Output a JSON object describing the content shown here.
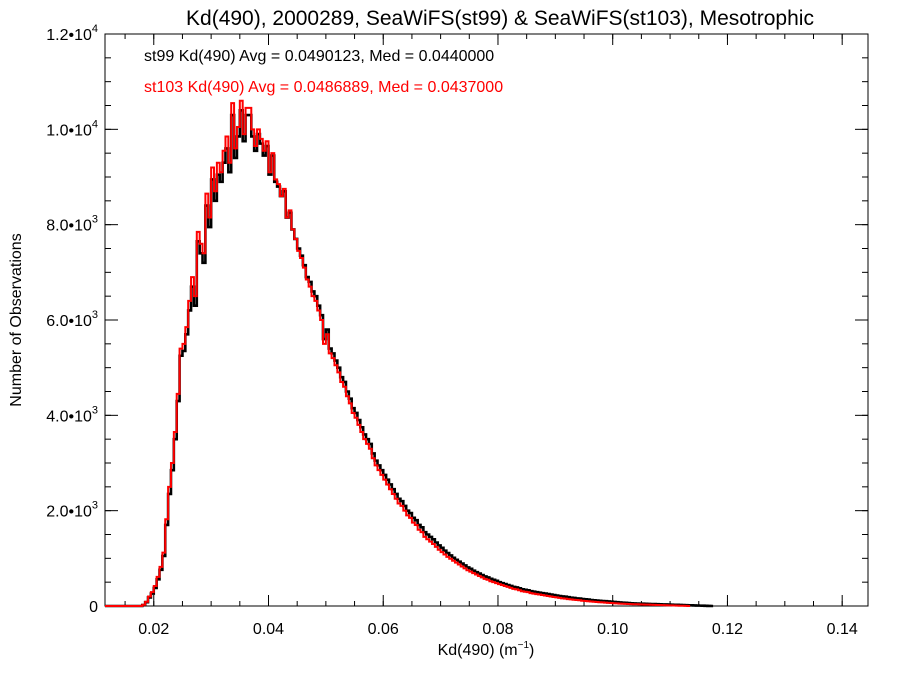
{
  "chart_data": {
    "type": "line",
    "title": "Kd(490), 2000289, SeaWiFS(st99) & SeaWiFS(st103), Mesotrophic",
    "xlabel_main": "Kd(490) (m",
    "xlabel_sup": "−1",
    "xlabel_close": ")",
    "ylabel": "Number of Observations",
    "xlim": [
      0.0115,
      0.1445
    ],
    "ylim": [
      0,
      12000
    ],
    "x_ticks": [
      {
        "value": 0.02,
        "label": "0.02"
      },
      {
        "value": 0.04,
        "label": "0.04"
      },
      {
        "value": 0.06,
        "label": "0.06"
      },
      {
        "value": 0.08,
        "label": "0.08"
      },
      {
        "value": 0.1,
        "label": "0.10"
      },
      {
        "value": 0.12,
        "label": "0.12"
      },
      {
        "value": 0.14,
        "label": "0.14"
      }
    ],
    "y_ticks": [
      {
        "value": 0,
        "mant": "0",
        "exp": ""
      },
      {
        "value": 2000,
        "mant": "2.0•10",
        "exp": "3"
      },
      {
        "value": 4000,
        "mant": "4.0•10",
        "exp": "3"
      },
      {
        "value": 6000,
        "mant": "6.0•10",
        "exp": "3"
      },
      {
        "value": 8000,
        "mant": "8.0•10",
        "exp": "3"
      },
      {
        "value": 10000,
        "mant": "1.0•10",
        "exp": "4"
      },
      {
        "value": 12000,
        "mant": "1.2•10",
        "exp": "4"
      }
    ],
    "annotations": [
      {
        "text": "st99 Kd(490) Avg = 0.0490123, Med = 0.0440000",
        "color": "#000000"
      },
      {
        "text": "st103 Kd(490) Avg = 0.0486889, Med = 0.0437000",
        "color": "#ff0000"
      }
    ],
    "grid": false,
    "legend": "none",
    "bin_start": 0.0115,
    "bin_width": 0.0005,
    "series": [
      {
        "color": "#000000",
        "values": [
          0,
          0,
          0,
          0,
          0,
          0,
          0,
          0,
          0,
          0,
          0,
          0,
          0,
          20,
          80,
          180,
          260,
          380,
          560,
          760,
          1050,
          1700,
          2350,
          2850,
          3500,
          4300,
          5250,
          5350,
          5700,
          6200,
          6700,
          6300,
          7650,
          7400,
          7200,
          8400,
          7950,
          8950,
          8500,
          9050,
          8900,
          9300,
          9600,
          9100,
          10300,
          9400,
          9850,
          10400,
          9750,
          10300,
          10300,
          9850,
          9550,
          9900,
          9700,
          9450,
          9650,
          9050,
          9450,
          8900,
          8800,
          8600,
          8700,
          8150,
          8250,
          7900,
          7700,
          7500,
          7350,
          7150,
          6900,
          6800,
          6600,
          6500,
          6300,
          6100,
          5600,
          5800,
          5400,
          5300,
          5150,
          5000,
          4800,
          4700,
          4500,
          4350,
          4150,
          4050,
          3900,
          3750,
          3600,
          3500,
          3400,
          3200,
          3050,
          2950,
          2850,
          2750,
          2650,
          2550,
          2450,
          2350,
          2250,
          2200,
          2100,
          2000,
          1950,
          1850,
          1800,
          1700,
          1650,
          1550,
          1500,
          1450,
          1400,
          1330,
          1270,
          1220,
          1160,
          1110,
          1060,
          1010,
          970,
          930,
          890,
          850,
          810,
          780,
          740,
          710,
          680,
          650,
          620,
          600,
          570,
          550,
          530,
          500,
          480,
          460,
          440,
          420,
          400,
          390,
          370,
          350,
          340,
          330,
          310,
          300,
          290,
          280,
          270,
          260,
          250,
          240,
          230,
          220,
          210,
          200,
          195,
          185,
          175,
          170,
          160,
          155,
          145,
          140,
          135,
          125,
          120,
          115,
          110,
          105,
          100,
          95,
          90,
          85,
          80,
          75,
          70,
          66,
          62,
          58,
          55,
          52,
          50,
          48,
          46,
          44,
          42,
          40,
          38,
          36,
          34,
          32,
          30,
          28,
          26,
          24,
          22,
          20,
          18,
          16,
          14,
          12,
          10,
          8,
          6,
          4,
          2,
          0
        ]
      },
      {
        "color": "#ff0000",
        "values": [
          0,
          0,
          0,
          0,
          0,
          0,
          0,
          0,
          0,
          0,
          0,
          0,
          0,
          25,
          90,
          200,
          290,
          420,
          610,
          820,
          1120,
          1820,
          2500,
          3000,
          3650,
          4450,
          5400,
          5500,
          5850,
          6400,
          6900,
          6500,
          7850,
          7600,
          7400,
          8650,
          8150,
          9200,
          8700,
          9300,
          9100,
          9550,
          9850,
          9300,
          10550,
          9600,
          10050,
          10600,
          9900,
          10450,
          10450,
          10000,
          9650,
          10000,
          9800,
          9550,
          9750,
          9100,
          9500,
          8950,
          8850,
          8600,
          8750,
          8150,
          8300,
          7900,
          7700,
          7450,
          7300,
          7100,
          6850,
          6700,
          6500,
          6400,
          6200,
          6000,
          5500,
          5700,
          5300,
          5200,
          5050,
          4900,
          4700,
          4600,
          4400,
          4250,
          4050,
          3950,
          3800,
          3650,
          3500,
          3400,
          3300,
          3100,
          2950,
          2850,
          2750,
          2650,
          2550,
          2450,
          2350,
          2250,
          2150,
          2100,
          2000,
          1900,
          1850,
          1750,
          1700,
          1600,
          1550,
          1450,
          1400,
          1350,
          1300,
          1240,
          1180,
          1130,
          1080,
          1030,
          990,
          950,
          910,
          870,
          830,
          790,
          750,
          720,
          690,
          660,
          630,
          600,
          570,
          550,
          520,
          500,
          480,
          460,
          440,
          420,
          400,
          380,
          360,
          350,
          330,
          310,
          300,
          290,
          270,
          260,
          250,
          240,
          230,
          220,
          210,
          200,
          190,
          180,
          170,
          160,
          155,
          145,
          140,
          130,
          125,
          120,
          110,
          105,
          100,
          95,
          90,
          85,
          80,
          75,
          70,
          66,
          62,
          58,
          54,
          50,
          47,
          44,
          42,
          40,
          38,
          36,
          34,
          32,
          30,
          28,
          26,
          24,
          22,
          20,
          18,
          16,
          14,
          12,
          10,
          8,
          6,
          4,
          2,
          0
        ]
      }
    ]
  }
}
